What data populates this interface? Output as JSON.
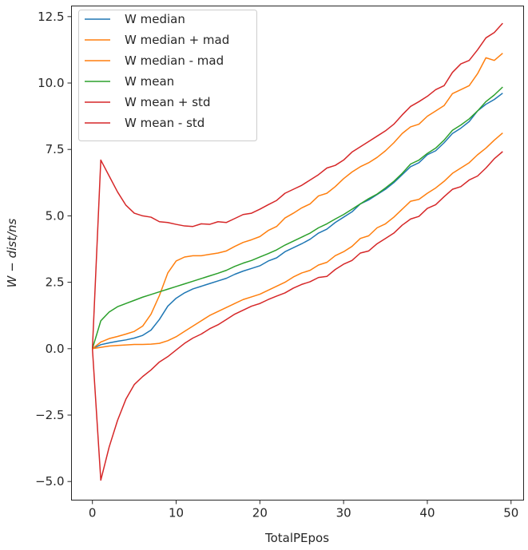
{
  "chart_data": {
    "type": "line",
    "title": "",
    "xlabel": "TotalPEpos",
    "ylabel": "W − dist/ns",
    "xlim": [
      -2.5,
      51.5
    ],
    "ylim": [
      -5.7,
      12.9
    ],
    "xticks": [
      0,
      10,
      20,
      30,
      40,
      50
    ],
    "xtick_labels": [
      "0",
      "10",
      "20",
      "30",
      "40",
      "50"
    ],
    "yticks": [
      -5.0,
      -2.5,
      0.0,
      2.5,
      5.0,
      7.5,
      10.0,
      12.5
    ],
    "ytick_labels": [
      "−5.0",
      "−2.5",
      "0.0",
      "2.5",
      "5.0",
      "7.5",
      "10.0",
      "12.5"
    ],
    "grid": false,
    "legend_position": "upper left",
    "x": [
      0,
      1,
      2,
      3,
      4,
      5,
      6,
      7,
      8,
      9,
      10,
      11,
      12,
      13,
      14,
      15,
      16,
      17,
      18,
      19,
      20,
      21,
      22,
      23,
      24,
      25,
      26,
      27,
      28,
      29,
      30,
      31,
      32,
      33,
      34,
      35,
      36,
      37,
      38,
      39,
      40,
      41,
      42,
      43,
      44,
      45,
      46,
      47,
      48,
      49
    ],
    "series": [
      {
        "name": "W median",
        "color": "#1f77b4",
        "values": [
          0.0,
          0.15,
          0.22,
          0.28,
          0.33,
          0.4,
          0.5,
          0.7,
          1.1,
          1.6,
          1.9,
          2.1,
          2.25,
          2.35,
          2.45,
          2.55,
          2.65,
          2.8,
          2.92,
          3.02,
          3.12,
          3.3,
          3.42,
          3.65,
          3.8,
          3.95,
          4.12,
          4.35,
          4.5,
          4.75,
          4.95,
          5.15,
          5.45,
          5.6,
          5.8,
          6.0,
          6.25,
          6.55,
          6.85,
          7.0,
          7.3,
          7.45,
          7.75,
          8.1,
          8.3,
          8.55,
          8.95,
          9.2,
          9.38,
          9.62
        ]
      },
      {
        "name": "W median + mad",
        "color": "#ff7f0e",
        "values": [
          0.0,
          0.25,
          0.38,
          0.46,
          0.55,
          0.65,
          0.85,
          1.3,
          2.0,
          2.85,
          3.3,
          3.45,
          3.5,
          3.5,
          3.55,
          3.6,
          3.68,
          3.85,
          4.0,
          4.1,
          4.22,
          4.45,
          4.6,
          4.92,
          5.1,
          5.3,
          5.45,
          5.75,
          5.85,
          6.1,
          6.4,
          6.65,
          6.85,
          7.0,
          7.2,
          7.45,
          7.75,
          8.1,
          8.35,
          8.45,
          8.75,
          8.95,
          9.15,
          9.6,
          9.75,
          9.9,
          10.35,
          10.95,
          10.85,
          11.12
        ]
      },
      {
        "name": "W median - mad",
        "color": "#ff7f0e",
        "values": [
          0.0,
          0.05,
          0.1,
          0.12,
          0.14,
          0.16,
          0.16,
          0.17,
          0.2,
          0.3,
          0.45,
          0.65,
          0.85,
          1.05,
          1.25,
          1.4,
          1.55,
          1.7,
          1.85,
          1.95,
          2.05,
          2.2,
          2.35,
          2.5,
          2.7,
          2.85,
          2.95,
          3.15,
          3.25,
          3.5,
          3.65,
          3.85,
          4.15,
          4.25,
          4.55,
          4.7,
          4.95,
          5.25,
          5.55,
          5.62,
          5.85,
          6.05,
          6.3,
          6.6,
          6.8,
          7.0,
          7.3,
          7.55,
          7.85,
          8.12
        ]
      },
      {
        "name": "W mean",
        "color": "#2ca02c",
        "values": [
          0.0,
          1.05,
          1.38,
          1.58,
          1.7,
          1.82,
          1.94,
          2.04,
          2.14,
          2.24,
          2.34,
          2.44,
          2.54,
          2.64,
          2.74,
          2.84,
          2.95,
          3.1,
          3.22,
          3.32,
          3.45,
          3.58,
          3.72,
          3.9,
          4.05,
          4.2,
          4.35,
          4.55,
          4.7,
          4.88,
          5.05,
          5.25,
          5.45,
          5.65,
          5.82,
          6.05,
          6.3,
          6.6,
          6.95,
          7.1,
          7.35,
          7.55,
          7.85,
          8.22,
          8.42,
          8.65,
          8.95,
          9.3,
          9.55,
          9.85
        ]
      },
      {
        "name": "W mean + std",
        "color": "#d62728",
        "values": [
          0.0,
          7.1,
          6.5,
          5.9,
          5.4,
          5.1,
          5.0,
          4.95,
          4.78,
          4.75,
          4.68,
          4.62,
          4.6,
          4.7,
          4.68,
          4.78,
          4.75,
          4.9,
          5.05,
          5.1,
          5.25,
          5.42,
          5.58,
          5.85,
          6.0,
          6.15,
          6.35,
          6.55,
          6.8,
          6.9,
          7.1,
          7.4,
          7.6,
          7.8,
          8.0,
          8.2,
          8.45,
          8.8,
          9.12,
          9.3,
          9.5,
          9.75,
          9.9,
          10.4,
          10.72,
          10.85,
          11.25,
          11.7,
          11.9,
          12.25
        ]
      },
      {
        "name": "W mean - std",
        "color": "#d62728",
        "values": [
          0.0,
          -4.95,
          -3.7,
          -2.7,
          -1.9,
          -1.35,
          -1.05,
          -0.8,
          -0.5,
          -0.3,
          -0.05,
          0.2,
          0.4,
          0.55,
          0.75,
          0.9,
          1.1,
          1.3,
          1.45,
          1.6,
          1.7,
          1.85,
          1.98,
          2.1,
          2.28,
          2.42,
          2.52,
          2.68,
          2.72,
          2.98,
          3.18,
          3.32,
          3.6,
          3.68,
          3.95,
          4.15,
          4.35,
          4.65,
          4.88,
          4.98,
          5.28,
          5.42,
          5.72,
          6.0,
          6.1,
          6.35,
          6.5,
          6.8,
          7.15,
          7.42
        ]
      }
    ]
  }
}
